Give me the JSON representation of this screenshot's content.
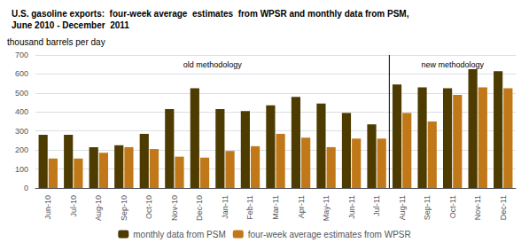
{
  "chart_data": {
    "type": "bar",
    "title": "U.S. gasoline exports:  four-week average  estimates  from WPSR and monthly data from PSM,\nJune 2010 - December  2011",
    "ylabel": "thousand barrels per day",
    "categories": [
      "Jun-10",
      "Jul-10",
      "Aug-10",
      "Sep-10",
      "Oct-10",
      "Nov-10",
      "Dec-10",
      "Jan-11",
      "Feb-11",
      "Mar-11",
      "Apr-11",
      "May-11",
      "Jun-11",
      "Jul-11",
      "Aug-11",
      "Sep-11",
      "Oct-11",
      "Nov-11",
      "Dec-11"
    ],
    "series": [
      {
        "name": "monthly data from PSM",
        "color": "#4d3b00",
        "values": [
          280,
          280,
          215,
          225,
          285,
          415,
          525,
          415,
          405,
          435,
          480,
          445,
          395,
          335,
          545,
          530,
          525,
          625,
          615
        ]
      },
      {
        "name": "four-week average estimates from WPSR",
        "color": "#c07818",
        "values": [
          155,
          155,
          185,
          215,
          205,
          165,
          160,
          195,
          220,
          285,
          265,
          215,
          260,
          260,
          395,
          350,
          490,
          530,
          525
        ]
      }
    ],
    "ylim": [
      0,
      700
    ],
    "yticks": [
      0,
      100,
      200,
      300,
      400,
      500,
      600,
      700
    ],
    "grid": true,
    "legend": "bottom",
    "annotations": [
      {
        "text": "old methodology",
        "from": "Jun-10",
        "to": "Jul-11",
        "y": 650
      },
      {
        "text": "new methodology",
        "from": "Aug-11",
        "to": "Dec-11",
        "y": 650
      }
    ]
  }
}
